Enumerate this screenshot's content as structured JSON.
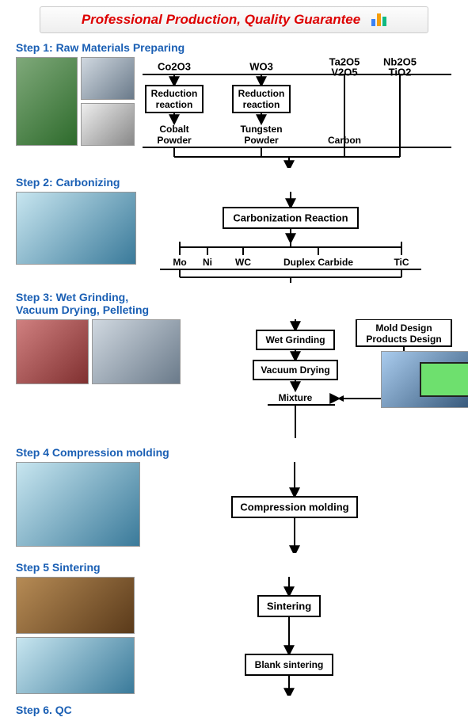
{
  "banner": {
    "text": "Professional Production,  Quality Guarantee"
  },
  "chart_bars": [
    {
      "h": 9,
      "color": "#3b82f6"
    },
    {
      "h": 16,
      "color": "#f59e0b"
    },
    {
      "h": 12,
      "color": "#10b981"
    }
  ],
  "steps": {
    "s1": "Step 1:  Raw Materials Preparing",
    "s2": "Step 2: Carbonizing",
    "s3a": "Step 3: Wet Grinding,",
    "s3b": "Vacuum Drying,  Pelleting",
    "s4": "Step 4 Compression molding",
    "s5": "Step 5  Sintering",
    "s6": "Step 6. QC"
  },
  "top": {
    "co2o3": "Co2O3",
    "wo3": "WO3",
    "ta2o5": "Ta2O5",
    "v2o5": "V2O5",
    "nb2o5": "Nb2O5",
    "tio2": "TiO2",
    "reduction1": "Reduction",
    "reaction1": "reaction",
    "reduction2": "Reduction",
    "reaction2": "reaction",
    "cobalt1": "Cobalt",
    "cobalt2": "Powder",
    "tungsten1": "Tungsten",
    "tungsten2": "Powder",
    "carbon": "Carbon"
  },
  "carbonization": "Carbonization Reaction",
  "row2": {
    "mo": "Mo",
    "ni": "Ni",
    "wc": "WC",
    "duplex": "Duplex Carbide",
    "tic": "TiC"
  },
  "design1": "Mold Design",
  "design2": "Products Design",
  "wet": "Wet Grinding",
  "vac": "Vacuum Drying",
  "mix": "Mixture",
  "comp": "Compression molding",
  "sint": "Sintering",
  "blank": "Blank sintering",
  "colors": {
    "title": "#1a5fb4",
    "banner_text": "#dd0000",
    "stroke": "#000000",
    "bg": "#ffffff"
  }
}
